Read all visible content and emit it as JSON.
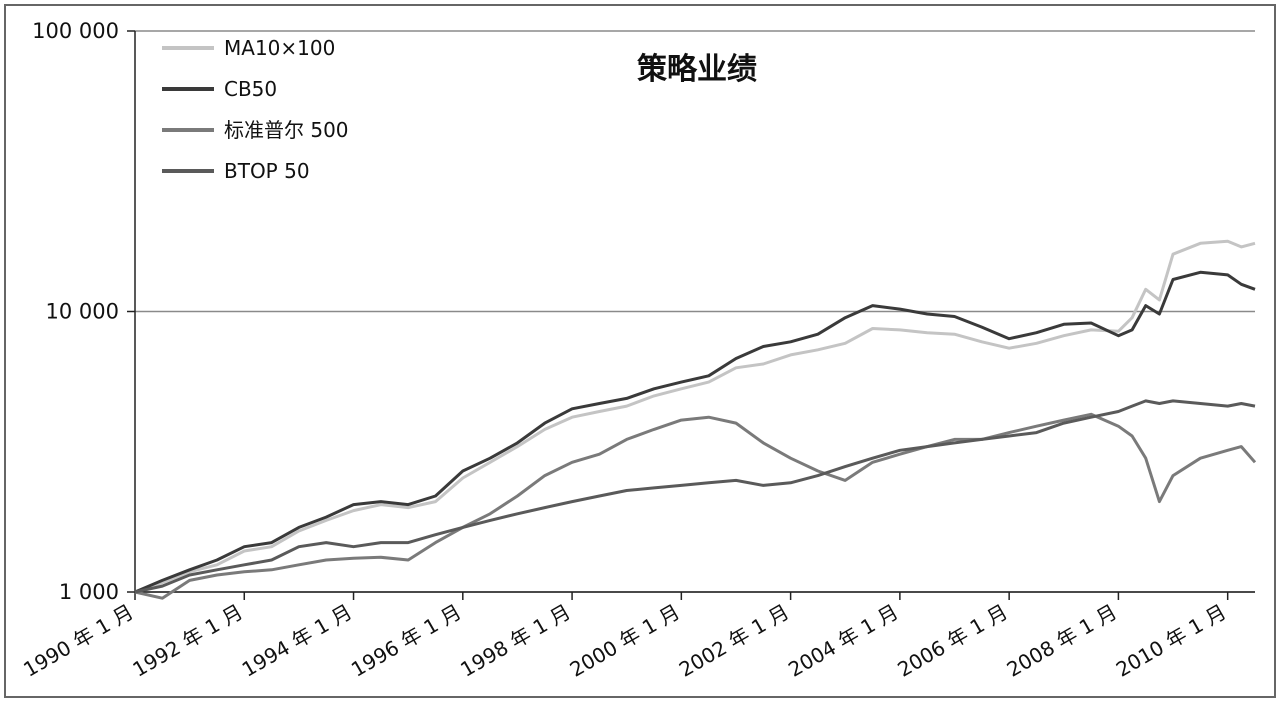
{
  "chart_data": {
    "type": "line",
    "title": "策略业绩",
    "yscale": "log",
    "ylim": [
      1000,
      100000
    ],
    "y_ticks": [
      "100 000",
      "10 000",
      "1 000"
    ],
    "y_tick_values": [
      100000,
      10000,
      1000
    ],
    "xlim": [
      1990.0,
      2010.5
    ],
    "x_ticks": [
      "1990 年 1 月",
      "1992 年 1 月",
      "1994 年 1 月",
      "1996 年 1 月",
      "1998 年 1 月",
      "2000 年 1 月",
      "2002 年 1 月",
      "2004 年 1 月",
      "2006 年 1 月",
      "2008 年 1 月",
      "2010 年 1 月"
    ],
    "x_tick_values": [
      1990,
      1992,
      1994,
      1996,
      1998,
      2000,
      2002,
      2004,
      2006,
      2008,
      2010
    ],
    "grid": "horizontal",
    "legend_position": "top-left",
    "series": [
      {
        "name": "MA10×100",
        "color": "#c4c4c4",
        "x": [
          1990.0,
          1990.5,
          1991.0,
          1991.5,
          1992.0,
          1992.5,
          1993.0,
          1993.5,
          1994.0,
          1994.5,
          1995.0,
          1995.5,
          1996.0,
          1996.5,
          1997.0,
          1997.5,
          1998.0,
          1998.5,
          1999.0,
          1999.5,
          2000.0,
          2000.5,
          2001.0,
          2001.5,
          2002.0,
          2002.5,
          2003.0,
          2003.5,
          2004.0,
          2004.5,
          2005.0,
          2005.5,
          2006.0,
          2006.5,
          2007.0,
          2007.5,
          2008.0,
          2008.25,
          2008.5,
          2008.75,
          2009.0,
          2009.5,
          2010.0,
          2010.25,
          2010.5
        ],
        "values": [
          1000,
          1080,
          1180,
          1250,
          1400,
          1450,
          1650,
          1800,
          1950,
          2050,
          2000,
          2100,
          2550,
          2900,
          3300,
          3800,
          4200,
          4400,
          4600,
          5000,
          5300,
          5600,
          6300,
          6500,
          7000,
          7300,
          7700,
          8700,
          8600,
          8400,
          8300,
          7800,
          7400,
          7700,
          8200,
          8600,
          8500,
          9500,
          12000,
          11000,
          16000,
          17500,
          17800,
          17000,
          17500
        ]
      },
      {
        "name": "CB50",
        "color": "#3a3a3a",
        "x": [
          1990.0,
          1990.5,
          1991.0,
          1991.5,
          1992.0,
          1992.5,
          1993.0,
          1993.5,
          1994.0,
          1994.5,
          1995.0,
          1995.5,
          1996.0,
          1996.5,
          1997.0,
          1997.5,
          1998.0,
          1998.5,
          1999.0,
          1999.5,
          2000.0,
          2000.5,
          2001.0,
          2001.5,
          2002.0,
          2002.5,
          2003.0,
          2003.5,
          2004.0,
          2004.5,
          2005.0,
          2005.5,
          2006.0,
          2006.5,
          2007.0,
          2007.5,
          2008.0,
          2008.25,
          2008.5,
          2008.75,
          2009.0,
          2009.5,
          2010.0,
          2010.25,
          2010.5
        ],
        "values": [
          1000,
          1100,
          1200,
          1300,
          1450,
          1500,
          1700,
          1850,
          2050,
          2100,
          2050,
          2200,
          2700,
          3000,
          3400,
          4000,
          4500,
          4700,
          4900,
          5300,
          5600,
          5900,
          6800,
          7500,
          7800,
          8300,
          9500,
          10500,
          10200,
          9800,
          9600,
          8800,
          8000,
          8400,
          9000,
          9100,
          8200,
          8600,
          10500,
          9800,
          13000,
          13800,
          13500,
          12500,
          12000
        ]
      },
      {
        "name": "标准普尔 500",
        "color": "#7a7a7a",
        "x": [
          1990.0,
          1990.5,
          1991.0,
          1991.5,
          1992.0,
          1992.5,
          1993.0,
          1993.5,
          1994.0,
          1994.5,
          1995.0,
          1995.5,
          1996.0,
          1996.5,
          1997.0,
          1997.5,
          1998.0,
          1998.5,
          1999.0,
          1999.5,
          2000.0,
          2000.5,
          2001.0,
          2001.5,
          2002.0,
          2002.5,
          2003.0,
          2003.5,
          2004.0,
          2004.5,
          2005.0,
          2005.5,
          2006.0,
          2006.5,
          2007.0,
          2007.5,
          2008.0,
          2008.25,
          2008.5,
          2008.75,
          2009.0,
          2009.5,
          2010.0,
          2010.25,
          2010.5
        ],
        "values": [
          1000,
          950,
          1100,
          1150,
          1180,
          1200,
          1250,
          1300,
          1320,
          1330,
          1300,
          1500,
          1700,
          1900,
          2200,
          2600,
          2900,
          3100,
          3500,
          3800,
          4100,
          4200,
          4000,
          3400,
          3000,
          2700,
          2500,
          2900,
          3100,
          3300,
          3500,
          3500,
          3700,
          3900,
          4100,
          4300,
          3900,
          3600,
          3000,
          2100,
          2600,
          3000,
          3200,
          3300,
          2900
        ]
      },
      {
        "name": "BTOP 50",
        "color": "#5a5a5a",
        "x": [
          1990.0,
          1990.5,
          1991.0,
          1991.5,
          1992.0,
          1992.5,
          1993.0,
          1993.5,
          1994.0,
          1994.5,
          1995.0,
          1995.5,
          1996.0,
          1996.5,
          1997.0,
          1997.5,
          1998.0,
          1998.5,
          1999.0,
          1999.5,
          2000.0,
          2000.5,
          2001.0,
          2001.5,
          2002.0,
          2002.5,
          2003.0,
          2003.5,
          2004.0,
          2004.5,
          2005.0,
          2005.5,
          2006.0,
          2006.5,
          2007.0,
          2007.5,
          2008.0,
          2008.25,
          2008.5,
          2008.75,
          2009.0,
          2009.5,
          2010.0,
          2010.25,
          2010.5
        ],
        "values": [
          1000,
          1050,
          1150,
          1200,
          1250,
          1300,
          1450,
          1500,
          1450,
          1500,
          1500,
          1600,
          1700,
          1800,
          1900,
          2000,
          2100,
          2200,
          2300,
          2350,
          2400,
          2450,
          2500,
          2400,
          2450,
          2600,
          2800,
          3000,
          3200,
          3300,
          3400,
          3500,
          3600,
          3700,
          4000,
          4200,
          4400,
          4600,
          4800,
          4700,
          4800,
          4700,
          4600,
          4700,
          4600
        ]
      }
    ]
  }
}
